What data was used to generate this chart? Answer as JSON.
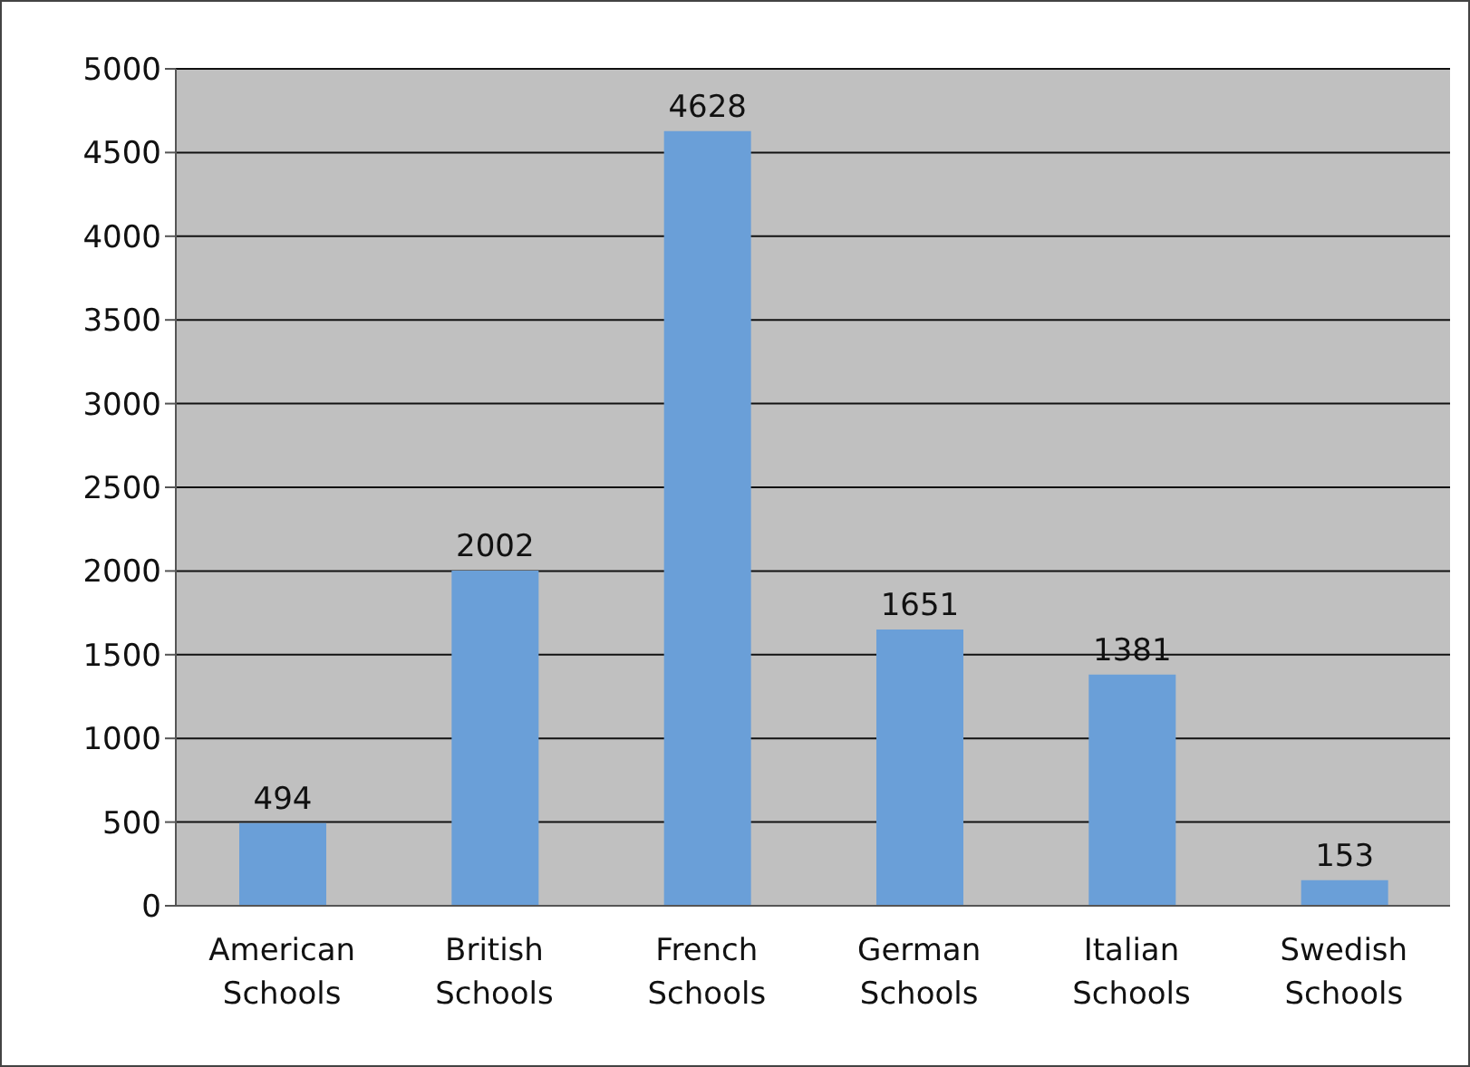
{
  "chart_data": {
    "type": "bar",
    "categories": [
      "American Schools",
      "British Schools",
      "French Schools",
      "German Schools",
      "Italian Schools",
      "Swedish Schools"
    ],
    "values": [
      494,
      2002,
      4628,
      1651,
      1381,
      153
    ],
    "color": "#6a9fd8",
    "ylim": [
      0,
      5000
    ],
    "yticks": [
      0,
      500,
      1000,
      1500,
      2000,
      2500,
      3000,
      3500,
      4000,
      4500,
      5000
    ],
    "grid": "y",
    "data_labels": true
  }
}
